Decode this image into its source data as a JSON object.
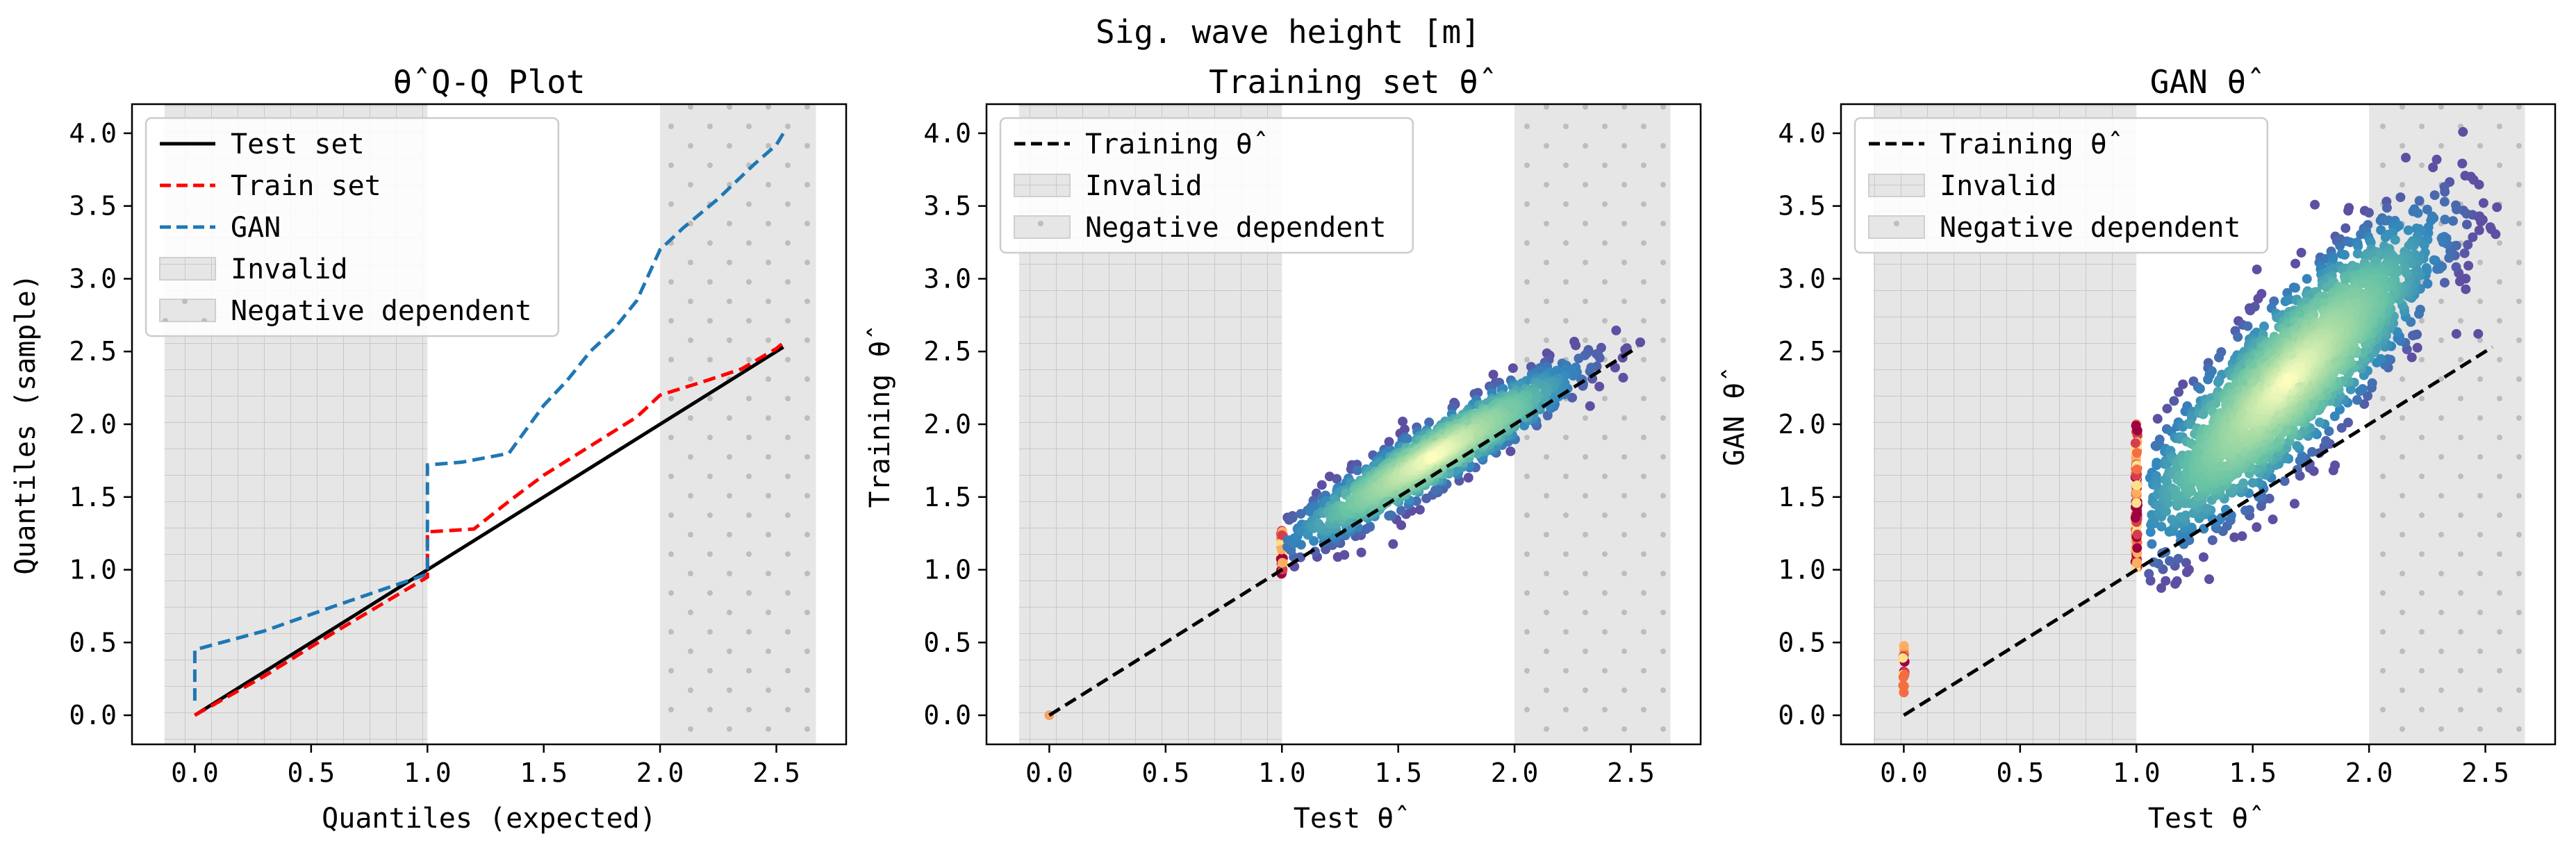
{
  "figure": {
    "suptitle": "Sig. wave height [m]"
  },
  "colors": {
    "test": "#000000",
    "train": "#ff0000",
    "gan": "#1f77b4",
    "region_fill": "#e6e6e6",
    "region_hatch": "#c8c8c8",
    "density_low": "#5e4fa2",
    "density_high": "#ffffbf",
    "outlier": "#d53e4f"
  },
  "chart_data": [
    {
      "type": "line",
      "title": "θ̂ Q-Q Plot",
      "xlabel": "Quantiles (expected)",
      "ylabel": "Quantiles (sample)",
      "xlim": [
        -0.27,
        2.8
      ],
      "ylim": [
        -0.2,
        4.2
      ],
      "xticks": [
        "0.0",
        "0.5",
        "1.0",
        "1.5",
        "2.0",
        "2.5"
      ],
      "yticks": [
        "0.0",
        "0.5",
        "1.0",
        "1.5",
        "2.0",
        "2.5",
        "3.0",
        "3.5",
        "4.0"
      ],
      "legend_position": "top-left",
      "regions": [
        {
          "name": "Invalid",
          "x": [
            -0.13,
            1.0
          ],
          "pattern": "grid"
        },
        {
          "name": "Negative dependent",
          "x": [
            2.0,
            2.67
          ],
          "pattern": "dots"
        }
      ],
      "series": [
        {
          "name": "Test set",
          "style": "solid",
          "x": [
            0.0,
            1.0,
            2.0,
            2.53
          ],
          "y": [
            0.0,
            1.0,
            2.0,
            2.53
          ]
        },
        {
          "name": "Train set",
          "style": "dashed",
          "x": [
            0.0,
            0.3,
            0.6,
            1.0,
            1.0,
            1.2,
            1.35,
            1.5,
            1.7,
            1.9,
            2.0,
            2.2,
            2.35,
            2.5,
            2.53
          ],
          "y": [
            0.0,
            0.27,
            0.57,
            0.95,
            1.26,
            1.28,
            1.47,
            1.65,
            1.85,
            2.05,
            2.2,
            2.3,
            2.38,
            2.52,
            2.56
          ]
        },
        {
          "name": "GAN",
          "style": "dashed",
          "x": [
            0.0,
            0.0,
            0.3,
            0.6,
            1.0,
            1.0,
            1.15,
            1.35,
            1.5,
            1.6,
            1.7,
            1.8,
            1.9,
            2.0,
            2.1,
            2.25,
            2.4,
            2.5,
            2.53
          ],
          "y": [
            0.1,
            0.45,
            0.58,
            0.75,
            0.97,
            1.72,
            1.74,
            1.8,
            2.13,
            2.3,
            2.5,
            2.65,
            2.85,
            3.2,
            3.35,
            3.55,
            3.78,
            3.92,
            4.0
          ]
        }
      ]
    },
    {
      "type": "scatter",
      "title": "Training set θ̂",
      "xlabel": "Test θ̂",
      "ylabel": "Training θ̂",
      "xlim": [
        -0.27,
        2.8
      ],
      "ylim": [
        -0.2,
        4.2
      ],
      "xticks": [
        "0.0",
        "0.5",
        "1.0",
        "1.5",
        "2.0",
        "2.5"
      ],
      "yticks": [
        "0.0",
        "0.5",
        "1.0",
        "1.5",
        "2.0",
        "2.5",
        "3.0",
        "3.5",
        "4.0"
      ],
      "legend_position": "top-left",
      "legend": [
        "Training θ̂",
        "Invalid",
        "Negative dependent"
      ],
      "regions": [
        {
          "name": "Invalid",
          "x": [
            -0.13,
            1.0
          ],
          "pattern": "grid"
        },
        {
          "name": "Negative dependent",
          "x": [
            2.0,
            2.67
          ],
          "pattern": "dots"
        }
      ],
      "reference_line": {
        "x": [
          0.0,
          2.53
        ],
        "y": [
          0.0,
          2.53
        ]
      },
      "clusters": [
        {
          "kind": "ellipse",
          "cx": 1.65,
          "cy": 1.78,
          "sx": 0.3,
          "sy": 0.3,
          "rho": 0.93,
          "n": 1400,
          "xrange": [
            1.02,
            2.55
          ]
        },
        {
          "kind": "vertical",
          "x": 1.0,
          "y": [
            0.97,
            1.27
          ],
          "n": 60
        },
        {
          "kind": "point",
          "x": 0.0,
          "y": 0.0
        }
      ]
    },
    {
      "type": "scatter",
      "title": "GAN θ̂",
      "xlabel": "Test θ̂",
      "ylabel": "GAN θ̂",
      "xlim": [
        -0.27,
        2.8
      ],
      "ylim": [
        -0.2,
        4.2
      ],
      "xticks": [
        "0.0",
        "0.5",
        "1.0",
        "1.5",
        "2.0",
        "2.5"
      ],
      "yticks": [
        "0.0",
        "0.5",
        "1.0",
        "1.5",
        "2.0",
        "2.5",
        "3.0",
        "3.5",
        "4.0"
      ],
      "legend_position": "top-left",
      "legend": [
        "Training θ̂",
        "Invalid",
        "Negative dependent"
      ],
      "regions": [
        {
          "name": "Invalid",
          "x": [
            -0.13,
            1.0
          ],
          "pattern": "grid"
        },
        {
          "name": "Negative dependent",
          "x": [
            2.0,
            2.67
          ],
          "pattern": "dots"
        }
      ],
      "reference_line": {
        "x": [
          0.0,
          2.53
        ],
        "y": [
          0.0,
          2.53
        ]
      },
      "clusters": [
        {
          "kind": "ellipse",
          "cx": 1.65,
          "cy": 2.3,
          "sx": 0.32,
          "sy": 0.55,
          "rho": 0.85,
          "n": 2200,
          "xrange": [
            1.05,
            2.55
          ]
        },
        {
          "kind": "vertical",
          "x": 1.0,
          "y": [
            1.0,
            2.0
          ],
          "n": 120
        },
        {
          "kind": "vertical",
          "x": 0.0,
          "y": [
            0.12,
            0.48
          ],
          "n": 18
        }
      ]
    }
  ]
}
